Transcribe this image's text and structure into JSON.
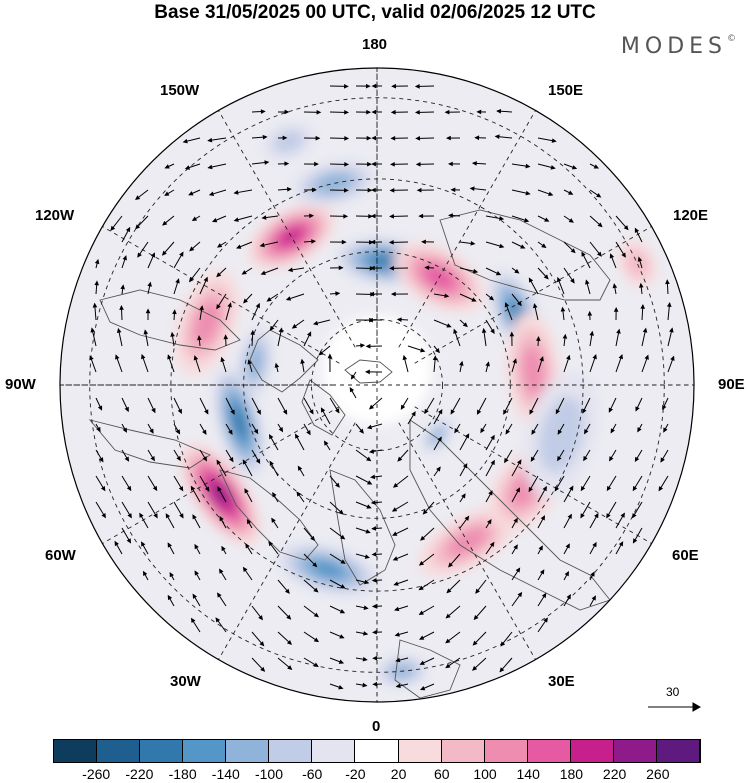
{
  "title": "Base 31/05/2025 00 UTC, valid 02/06/2025 12 UTC",
  "brand": {
    "text": "MODES",
    "mark": "©"
  },
  "longitude_labels": {
    "top": "180",
    "bottom": "0",
    "left": "90W",
    "right": "90E",
    "upper_left_1": "150W",
    "upper_left_2": "120W",
    "upper_right_1": "150E",
    "upper_right_2": "120E",
    "lower_left_1": "60W",
    "lower_left_2": "30W",
    "lower_right_1": "60E",
    "lower_right_2": "30E"
  },
  "colorbar": {
    "ticks": [
      "-260",
      "-220",
      "-180",
      "-140",
      "-100",
      "-60",
      "-20",
      "20",
      "60",
      "100",
      "140",
      "180",
      "220",
      "260"
    ],
    "colors": [
      "#0d3c5c",
      "#1e5f8f",
      "#3179ad",
      "#5596c8",
      "#8fb3d9",
      "#c1cce6",
      "#e4e4f0",
      "#ffffff",
      "#f8dcdd",
      "#f3b9c6",
      "#ee8db0",
      "#e55aa3",
      "#c71f8c",
      "#8f1a8a",
      "#5e1a7e"
    ]
  },
  "vector_reference": {
    "label": "30"
  },
  "anomaly_centers": [
    {
      "lon": -150,
      "lat": 52,
      "value": 200,
      "rx": 48,
      "ry": 26
    },
    {
      "lon": 175,
      "lat": 62,
      "value": -200,
      "rx": 55,
      "ry": 24
    },
    {
      "lon": -168,
      "lat": 45,
      "value": -120,
      "rx": 45,
      "ry": 22
    },
    {
      "lon": 150,
      "lat": 62,
      "value": 150,
      "rx": 50,
      "ry": 28
    },
    {
      "lon": 115,
      "lat": 55,
      "value": -180,
      "rx": 55,
      "ry": 22
    },
    {
      "lon": 95,
      "lat": 55,
      "value": 100,
      "rx": 60,
      "ry": 26
    },
    {
      "lon": -110,
      "lat": 50,
      "value": 100,
      "rx": 55,
      "ry": 28
    },
    {
      "lon": -100,
      "lat": 62,
      "value": -100,
      "rx": 40,
      "ry": 18
    },
    {
      "lon": -75,
      "lat": 58,
      "value": -190,
      "rx": 60,
      "ry": 22
    },
    {
      "lon": -55,
      "lat": 48,
      "value": 220,
      "rx": 60,
      "ry": 26
    },
    {
      "lon": -15,
      "lat": 48,
      "value": -140,
      "rx": 55,
      "ry": 24
    },
    {
      "lon": 30,
      "lat": 50,
      "value": 100,
      "rx": 55,
      "ry": 25
    },
    {
      "lon": 55,
      "lat": 50,
      "value": 120,
      "rx": 48,
      "ry": 30
    },
    {
      "lon": 50,
      "lat": 72,
      "value": -120,
      "rx": 22,
      "ry": 12
    },
    {
      "lon": 75,
      "lat": 48,
      "value": -50,
      "rx": 65,
      "ry": 35
    },
    {
      "lon": 5,
      "lat": 30,
      "value": -100,
      "rx": 28,
      "ry": 16
    },
    {
      "lon": -160,
      "lat": 35,
      "value": -60,
      "rx": 28,
      "ry": 18
    },
    {
      "lon": 115,
      "lat": 30,
      "value": 60,
      "rx": 25,
      "ry": 18
    }
  ]
}
